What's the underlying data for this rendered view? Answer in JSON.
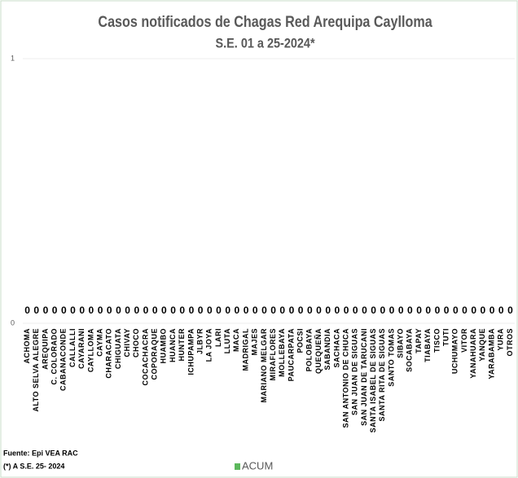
{
  "chart_data": {
    "type": "bar",
    "title": "Casos notificados de Chagas Red Arequipa Caylloma",
    "subtitle": "S.E. 01 a 25-2024*",
    "categories": [
      "ACHOMA",
      "ALTO SELVA ALEGRE",
      "AREQUIPA",
      "C. COLORADO",
      "CABANACONDE",
      "CALLALLI",
      "CAYARANI",
      "CAYLLOMA",
      "CAYMA",
      "CHARACATO",
      "CHIGUATA",
      "CHIVAY",
      "CHOCO",
      "COCACHACRA",
      "COPORAQUE",
      "HUAMBO",
      "HUANCA",
      "HUNTER",
      "ICHUPAMPA",
      "JLBYR",
      "LA JOYA",
      "LARI",
      "LLUTA",
      "MACA",
      "MADRIGAL",
      "MAJES",
      "MARIANO MELGAR",
      "MIRAFLORES",
      "MOLLEBAYA",
      "PAUCARPATA",
      "POCSI",
      "POLOBAYA",
      "QUEQUEÑA",
      "SABANDIA",
      "SACHACA",
      "SAN ANTONIO DE CHUCA",
      "SAN JUAN DE SIGUAS",
      "SAN JUAN DE TARUCANI",
      "SANTA ISABEL DE SIGUAS",
      "SANTA RITA DE SIGUAS",
      "SANTO TOMAS",
      "SIBAYO",
      "SOCABAYA",
      "TAPAY",
      "TIABAYA",
      "TISCO",
      "TUTI",
      "UCHUMAYO",
      "VITOR",
      "YANAHUARA",
      "YANQUE",
      "YARABAMBA",
      "YURA",
      "OTROS"
    ],
    "series": [
      {
        "name": "ACUM",
        "color": "#5cb85c",
        "values": [
          0,
          0,
          0,
          0,
          0,
          0,
          0,
          0,
          0,
          0,
          0,
          0,
          0,
          0,
          0,
          0,
          0,
          0,
          0,
          0,
          0,
          0,
          0,
          0,
          0,
          0,
          0,
          0,
          0,
          0,
          0,
          0,
          0,
          0,
          0,
          0,
          0,
          0,
          0,
          0,
          0,
          0,
          0,
          0,
          0,
          0,
          0,
          0,
          0,
          0,
          0,
          0,
          0,
          0
        ]
      }
    ],
    "ylim": [
      0,
      1
    ],
    "yticks": [
      0,
      1
    ],
    "grid": true,
    "notes": [
      "Fuente: Epi VEA RAC",
      "(*) A S.E. 25- 2024"
    ]
  }
}
